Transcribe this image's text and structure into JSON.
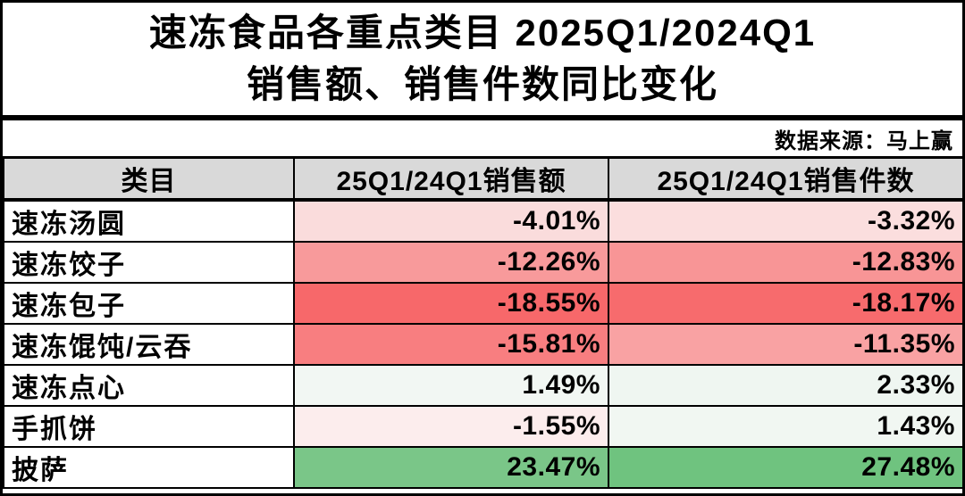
{
  "title": {
    "line1": "速冻食品各重点类目 2025Q1/2024Q1",
    "line2": "销售额、销售件数同比变化"
  },
  "source_label": "数据来源：马上赢",
  "colors": {
    "header_bg": "#D9D9D9",
    "border": "#000000",
    "negative_strong": "#F7686A",
    "positive_strong": "#6FC37F"
  },
  "table": {
    "headers": [
      "类目",
      "25Q1/24Q1销售额",
      "25Q1/24Q1销售件数"
    ],
    "rows": [
      {
        "category": "速冻汤圆",
        "sales": "-4.01%",
        "units": "-3.32%",
        "sales_bg": "#FADCDC",
        "units_bg": "#FBDEDE"
      },
      {
        "category": "速冻饺子",
        "sales": "-12.26%",
        "units": "-12.83%",
        "sales_bg": "#F89A9B",
        "units_bg": "#F89596"
      },
      {
        "category": "速冻包子",
        "sales": "-18.55%",
        "units": "-18.17%",
        "sales_bg": "#F7686A",
        "units_bg": "#F76B6D"
      },
      {
        "category": "速冻馄饨/云吞",
        "sales": "-15.81%",
        "units": "-11.35%",
        "sales_bg": "#F87E80",
        "units_bg": "#F9A2A3"
      },
      {
        "category": "速冻点心",
        "sales": "1.49%",
        "units": "2.33%",
        "sales_bg": "#F2F7F3",
        "units_bg": "#EFF6F1"
      },
      {
        "category": "手抓饼",
        "sales": "-1.55%",
        "units": "1.43%",
        "sales_bg": "#FCEDED",
        "units_bg": "#F1F7F2"
      },
      {
        "category": "披萨",
        "sales": "23.47%",
        "units": "27.48%",
        "sales_bg": "#7AC688",
        "units_bg": "#6FC37F"
      }
    ]
  },
  "chart_data": {
    "type": "table",
    "title": "速冻食品各重点类目 2025Q1/2024Q1 销售额、销售件数同比变化",
    "source": "数据来源：马上赢",
    "categories": [
      "速冻汤圆",
      "速冻饺子",
      "速冻包子",
      "速冻馄饨/云吞",
      "速冻点心",
      "手抓饼",
      "披萨"
    ],
    "series": [
      {
        "name": "25Q1/24Q1销售额",
        "values": [
          -4.01,
          -12.26,
          -18.55,
          -15.81,
          1.49,
          -1.55,
          23.47
        ],
        "unit": "%"
      },
      {
        "name": "25Q1/24Q1销售件数",
        "values": [
          -3.32,
          -12.83,
          -18.17,
          -11.35,
          2.33,
          1.43,
          27.48
        ],
        "unit": "%"
      }
    ],
    "color_scale": "red = decline, white = near zero, green = growth"
  }
}
